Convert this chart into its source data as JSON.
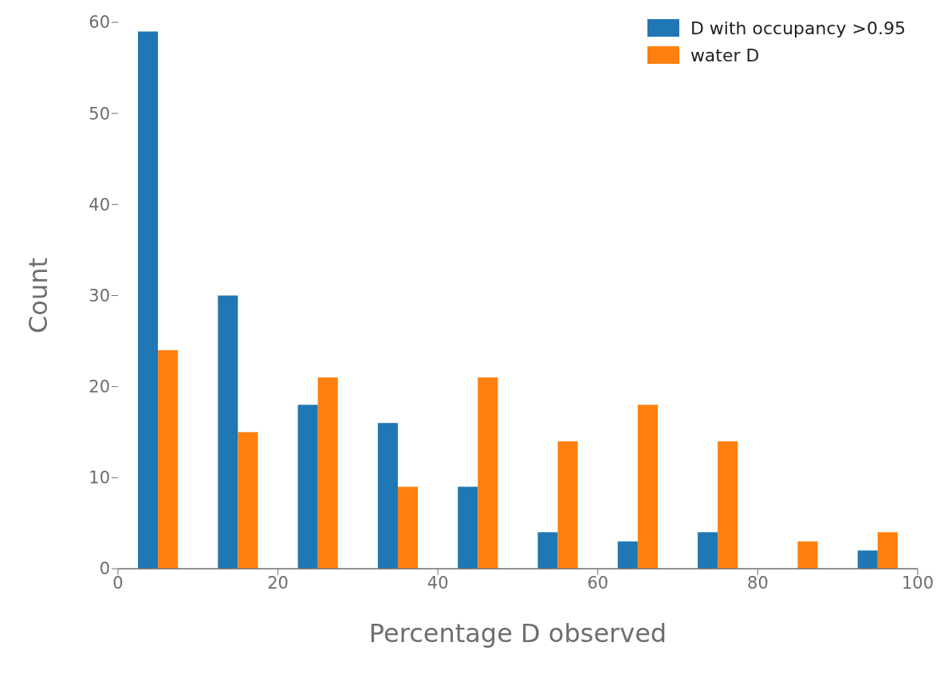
{
  "chart_data": {
    "type": "histogram",
    "xlabel": "Percentage D observed",
    "ylabel": "Count",
    "bins": [
      0,
      10,
      20,
      30,
      40,
      50,
      60,
      70,
      80,
      90,
      100
    ],
    "series": [
      {
        "name": "D with occupancy >0.95",
        "color": "#1f77b4",
        "values": [
          59,
          30,
          18,
          16,
          9,
          4,
          3,
          4,
          0,
          2
        ]
      },
      {
        "name": "water D",
        "color": "#ff7f0e",
        "values": [
          24,
          15,
          21,
          9,
          21,
          14,
          18,
          14,
          3,
          4
        ]
      }
    ],
    "xlim": [
      0,
      100
    ],
    "xticks": [
      0,
      20,
      40,
      60,
      80,
      100
    ],
    "ylim": [
      0,
      60
    ],
    "yticks": [
      0,
      10,
      20,
      30,
      40,
      50,
      60
    ],
    "grid": false,
    "legend": "top right"
  }
}
